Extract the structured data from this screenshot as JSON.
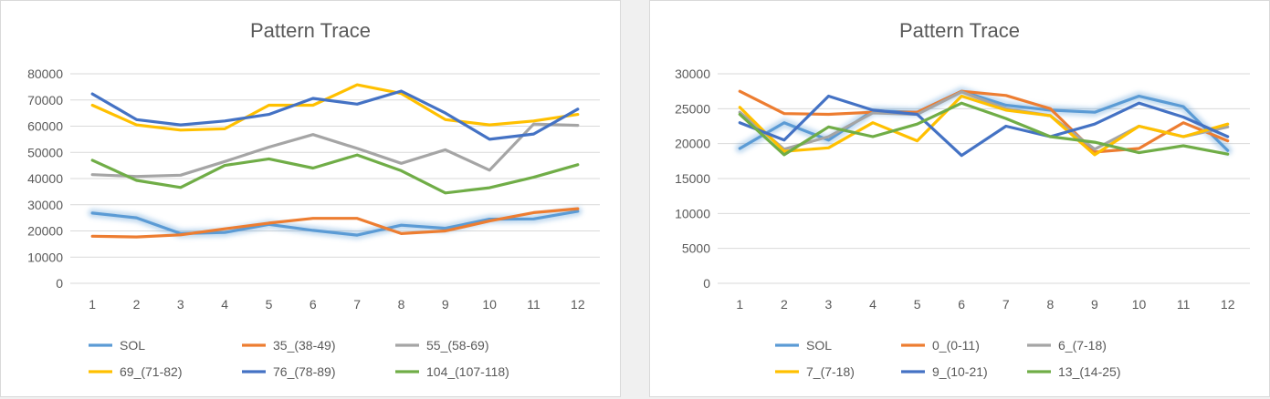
{
  "chart_data": [
    {
      "type": "line",
      "title": "Pattern Trace",
      "x": [
        1,
        2,
        3,
        4,
        5,
        6,
        7,
        8,
        9,
        10,
        11,
        12
      ],
      "ylim": [
        0,
        80000
      ],
      "yticks": [
        0,
        10000,
        20000,
        30000,
        40000,
        50000,
        60000,
        70000,
        80000
      ],
      "grid": true,
      "legend": "bottom",
      "series": [
        {
          "name": "SOL",
          "color": "#5b9bd5",
          "highlight": true,
          "values": [
            26800,
            25000,
            19000,
            19400,
            22500,
            20200,
            18400,
            22200,
            21000,
            24500,
            24600,
            27500
          ]
        },
        {
          "name": "35_(38-49)",
          "color": "#ed7d31",
          "values": [
            18000,
            17700,
            18500,
            20800,
            23000,
            24800,
            24800,
            19000,
            20000,
            23800,
            27000,
            28500
          ]
        },
        {
          "name": "55_(58-69)",
          "color": "#a5a5a5",
          "values": [
            41500,
            40800,
            41300,
            46500,
            52000,
            56800,
            51500,
            45800,
            51000,
            43200,
            60800,
            60300
          ]
        },
        {
          "name": "69_(71-82)",
          "color": "#ffc000",
          "values": [
            68000,
            60500,
            58500,
            59000,
            68000,
            68000,
            75800,
            72500,
            62500,
            60500,
            62000,
            64500
          ]
        },
        {
          "name": "76_(78-89)",
          "color": "#4472c4",
          "values": [
            72300,
            62500,
            60500,
            62000,
            64500,
            70600,
            68400,
            73400,
            65000,
            55000,
            57000,
            66500
          ]
        },
        {
          "name": "104_(107-118)",
          "color": "#70ad47",
          "values": [
            47000,
            39300,
            36600,
            45000,
            47500,
            44000,
            49000,
            43000,
            34500,
            36500,
            40500,
            45300
          ]
        }
      ]
    },
    {
      "type": "line",
      "title": "Pattern Trace",
      "x": [
        1,
        2,
        3,
        4,
        5,
        6,
        7,
        8,
        9,
        10,
        11,
        12
      ],
      "ylim": [
        0,
        30000
      ],
      "yticks": [
        0,
        5000,
        10000,
        15000,
        20000,
        25000,
        30000
      ],
      "grid": true,
      "legend": "bottom",
      "series": [
        {
          "name": "SOL",
          "color": "#5b9bd5",
          "highlight": true,
          "values": [
            19300,
            23000,
            20500,
            24700,
            24500,
            27500,
            25500,
            24800,
            24500,
            26800,
            25300,
            19000
          ]
        },
        {
          "name": "0_(0-11)",
          "color": "#ed7d31",
          "values": [
            27500,
            24300,
            24200,
            24500,
            24500,
            27500,
            26900,
            25000,
            18800,
            19300,
            23000,
            20400
          ]
        },
        {
          "name": "6_(7-18)",
          "color": "#a5a5a5",
          "values": [
            24500,
            19200,
            21000,
            24400,
            24200,
            27400,
            25000,
            24000,
            19200,
            22500,
            21000,
            22400
          ]
        },
        {
          "name": "7_(7-18)",
          "color": "#ffc000",
          "values": [
            25200,
            18900,
            19400,
            23000,
            20400,
            26800,
            24800,
            24000,
            18400,
            22500,
            21000,
            22800
          ]
        },
        {
          "name": "9_(10-21)",
          "color": "#4472c4",
          "values": [
            23000,
            20500,
            26800,
            24800,
            24200,
            18300,
            22500,
            21000,
            22800,
            25800,
            23800,
            21000
          ]
        },
        {
          "name": "13_(14-25)",
          "color": "#70ad47",
          "values": [
            24200,
            18400,
            22400,
            21000,
            22800,
            25800,
            23600,
            21000,
            20200,
            18700,
            19700,
            18500
          ]
        }
      ]
    }
  ]
}
